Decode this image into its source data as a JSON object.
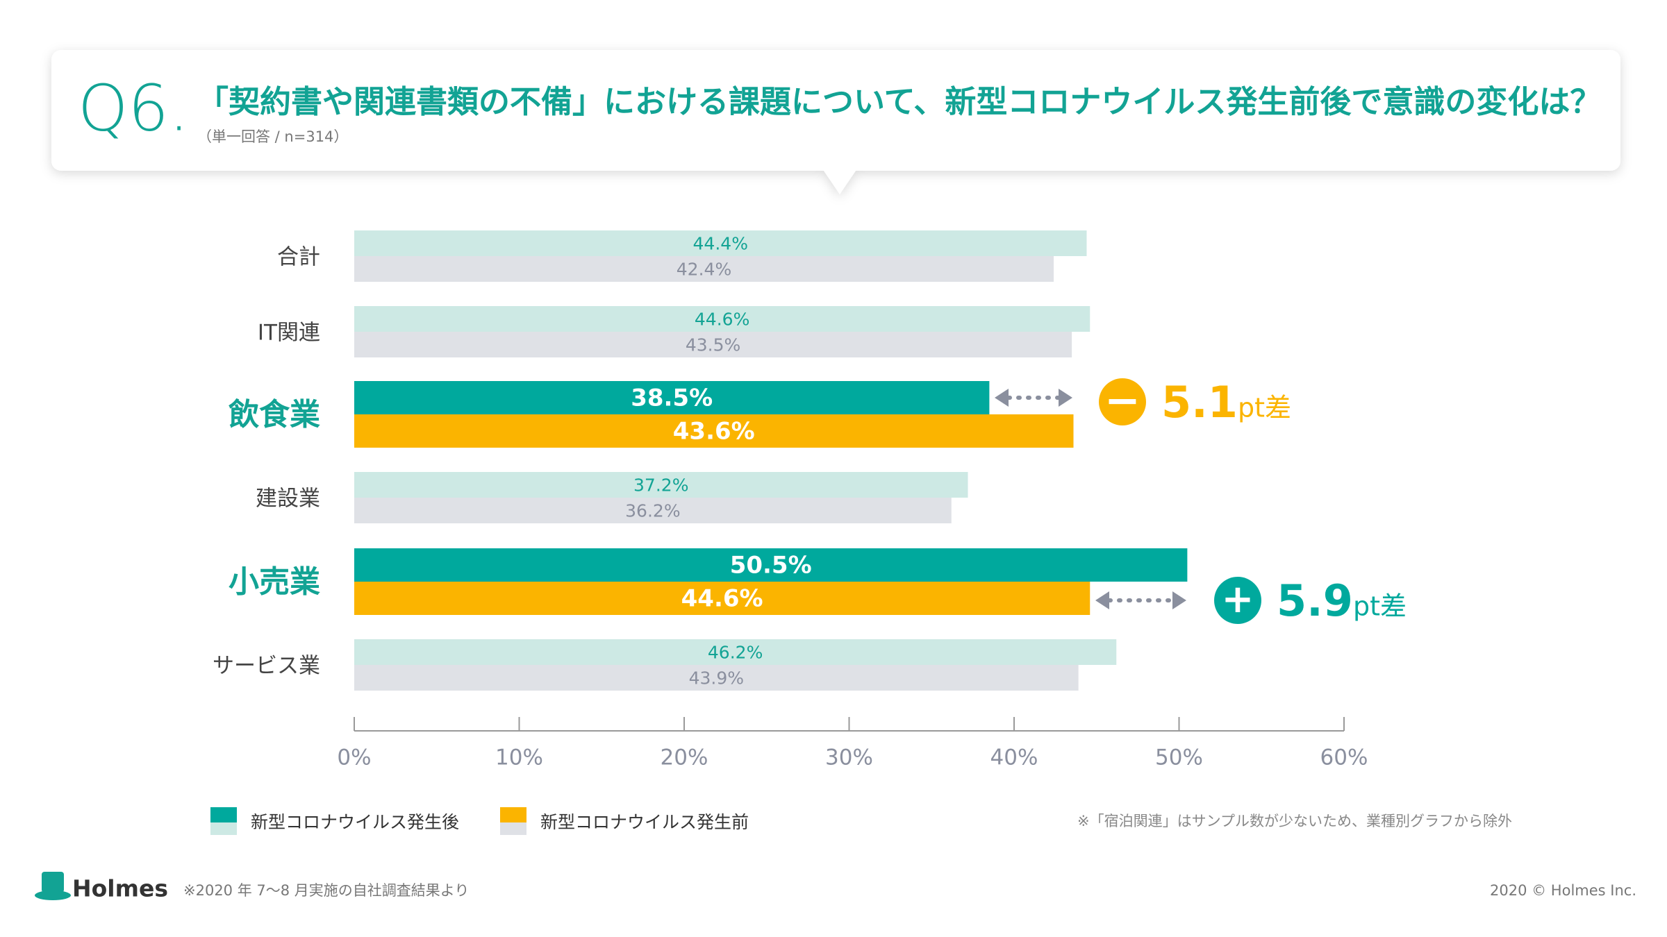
{
  "header": {
    "number": "Q6.",
    "question": "「契約書や関連書類の不備」における課題について、新型コロナウイルス発生前後で意識の変化は？",
    "note": "（単一回答 / n=314）"
  },
  "chart_data": {
    "type": "bar",
    "orientation": "horizontal",
    "categories": [
      "合計",
      "IT関連",
      "飲食業",
      "建設業",
      "小売業",
      "サービス業"
    ],
    "emphasis": [
      false,
      false,
      true,
      false,
      true,
      false
    ],
    "series": [
      {
        "name": "新型コロナウイルス発生後",
        "color": "#00a99d",
        "colors": [
          "#cde9e4",
          "#cde9e4",
          "#00a99d",
          "#cde9e4",
          "#00a99d",
          "#cde9e4"
        ],
        "values": [
          44.4,
          44.6,
          38.5,
          37.2,
          50.5,
          46.2
        ],
        "value_labels": [
          "44.4%",
          "44.6%",
          "38.5%",
          "37.2%",
          "50.5%",
          "46.2%"
        ]
      },
      {
        "name": "新型コロナウイルス発生前",
        "color": "#fbb400",
        "colors": [
          "#dfe1e6",
          "#dfe1e6",
          "#fbb400",
          "#dfe1e6",
          "#fbb400",
          "#dfe1e6"
        ],
        "values": [
          42.4,
          43.5,
          43.6,
          36.2,
          44.6,
          43.9
        ],
        "value_labels": [
          "42.4%",
          "43.5%",
          "43.6%",
          "36.2%",
          "44.6%",
          "43.9%"
        ]
      }
    ],
    "xlim": [
      0,
      60
    ],
    "xticks": [
      {
        "value": 0,
        "label": "0%"
      },
      {
        "value": 10,
        "label": "10%"
      },
      {
        "value": 20,
        "label": "20%"
      },
      {
        "value": 30,
        "label": "30%"
      },
      {
        "value": 40,
        "label": "40%"
      },
      {
        "value": 50,
        "label": "50%"
      },
      {
        "value": 60,
        "label": "60%"
      }
    ],
    "annotations": [
      {
        "sign": "−",
        "value": "5.1",
        "unit": "pt差"
      },
      {
        "sign": "+",
        "value": "5.9",
        "unit": "pt差"
      }
    ],
    "footnote": "※「宿泊関連」はサンプル数が少ないため、業種別グラフから除外"
  },
  "footer": {
    "brand": "Holmes",
    "source": "※2020 年 7〜8 月実施の自社調査結果より",
    "copyright": "2020 © Holmes Inc."
  }
}
